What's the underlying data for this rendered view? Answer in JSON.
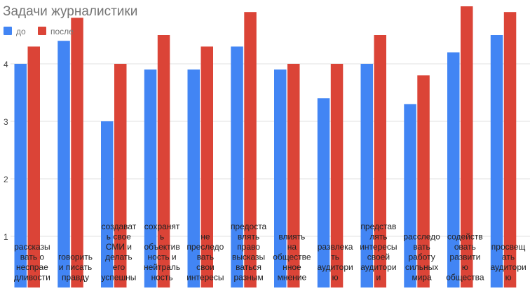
{
  "chart_data": {
    "type": "bar",
    "title": "Задачи журналистики",
    "xlabel": "",
    "ylabel": "",
    "ylim": [
      0.6,
      5.2
    ],
    "yticks": [
      1,
      2,
      3,
      4
    ],
    "grid": true,
    "legend": "top-left",
    "categories": [
      [
        "рассказы",
        "вать о",
        "неспраe",
        "дливости"
      ],
      [
        "говорить",
        "и писать",
        "правду"
      ],
      [
        "создават",
        "ь свое",
        "СМИ и",
        "делать",
        "его",
        "успешны"
      ],
      [
        "сохранят",
        "ь",
        "объектив",
        "ность и",
        "нейтраль",
        "ность"
      ],
      [
        "не",
        "преследо",
        "вать",
        "свои",
        "интересы"
      ],
      [
        "предоста",
        "влять",
        "право",
        "высказы",
        "ваться",
        "разным"
      ],
      [
        "влиять",
        "на",
        "обществе",
        "нное",
        "мнение"
      ],
      [
        "развлека",
        "ть",
        "аудитори",
        "ю"
      ],
      [
        "представ",
        "лять",
        "интересы",
        "своей",
        "аудитори",
        "и"
      ],
      [
        "расследо",
        "вать",
        "работу",
        "сильных",
        "мира"
      ],
      [
        "содейств",
        "овать",
        "развити",
        "ю",
        "общества"
      ],
      [
        "просвещ",
        "ать",
        "аудитори",
        "ю"
      ]
    ],
    "series": [
      {
        "name": "до",
        "color": "#4285f4",
        "values": [
          4.0,
          4.4,
          3.0,
          3.9,
          3.9,
          4.3,
          3.9,
          3.4,
          4.0,
          3.3,
          4.2,
          4.5
        ]
      },
      {
        "name": "после",
        "color": "#db4437",
        "values": [
          4.3,
          4.8,
          4.0,
          4.5,
          4.3,
          4.9,
          4.0,
          4.0,
          4.5,
          3.8,
          5.0,
          4.9
        ]
      }
    ]
  }
}
